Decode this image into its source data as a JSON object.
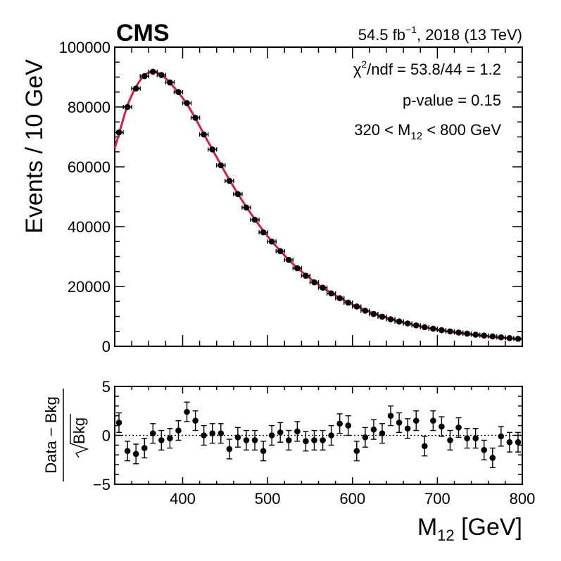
{
  "header": {
    "experiment": "CMS",
    "lumi_text": "54.5 fb",
    "lumi_exp": "−1",
    "lumi_rest": ", 2018 (13 TeV)"
  },
  "info": {
    "chi2_prefix": "χ",
    "chi2_exp": "2",
    "chi2_rest": "/ndf = 53.8/44 = 1.2",
    "pvalue": "p-value = 0.15",
    "range_prefix": "320 < M",
    "range_sub": "12",
    "range_rest": " < 800 GeV"
  },
  "chart_data": [
    {
      "type": "scatter",
      "title": "Events / 10 GeV",
      "ylabel": "Events / 10 GeV",
      "xlim": [
        320,
        800
      ],
      "ylim": [
        0,
        100000
      ],
      "yticks": [
        0,
        20000,
        40000,
        60000,
        80000,
        100000
      ],
      "ytick_labels": [
        "0",
        "20000",
        "40000",
        "60000",
        "80000",
        "100000"
      ],
      "series": [
        {
          "name": "Data",
          "x": [
            325,
            335,
            345,
            355,
            365,
            375,
            385,
            395,
            405,
            415,
            425,
            435,
            445,
            455,
            465,
            475,
            485,
            495,
            505,
            515,
            525,
            535,
            545,
            555,
            565,
            575,
            585,
            595,
            605,
            615,
            625,
            635,
            645,
            655,
            665,
            675,
            685,
            695,
            705,
            715,
            725,
            735,
            745,
            755,
            765,
            775,
            785,
            795
          ],
          "y": [
            71500,
            80000,
            86200,
            90300,
            91800,
            90700,
            88200,
            85000,
            81300,
            76400,
            70800,
            65800,
            60500,
            55300,
            50900,
            46400,
            42300,
            38100,
            35000,
            31800,
            28900,
            26100,
            23600,
            21400,
            19600,
            17700,
            16100,
            14600,
            13300,
            11900,
            10800,
            9900,
            9050,
            8300,
            7650,
            7000,
            6400,
            5900,
            5400,
            5000,
            4600,
            4250,
            3900,
            3600,
            3300,
            3000,
            2750,
            2500
          ]
        },
        {
          "name": "Fit",
          "x": [
            325,
            335,
            345,
            355,
            365,
            375,
            385,
            395,
            405,
            415,
            425,
            435,
            445,
            455,
            465,
            475,
            485,
            495,
            505,
            515,
            525,
            535,
            545,
            555,
            565,
            575,
            585,
            595,
            605,
            615,
            625,
            635,
            645,
            655,
            665,
            675,
            685,
            695,
            705,
            715,
            725,
            735,
            745,
            755,
            765,
            775,
            785,
            795
          ],
          "y": [
            71000,
            80500,
            86700,
            90600,
            91700,
            90800,
            88100,
            84800,
            81000,
            76200,
            70900,
            65800,
            60700,
            55700,
            51000,
            46600,
            42500,
            38600,
            35100,
            31900,
            28900,
            26200,
            23800,
            21600,
            19600,
            17800,
            16200,
            14700,
            13300,
            12100,
            11000,
            10000,
            9100,
            8300,
            7600,
            6950,
            6350,
            5800,
            5300,
            4850,
            4450,
            4080,
            3740,
            3430,
            3150,
            2900,
            2660,
            2450
          ],
          "color": "#d4203f"
        }
      ]
    },
    {
      "type": "scatter",
      "xlabel": "M",
      "xlabel_sub": "12",
      "xlabel_rest": " [GeV]",
      "ylabel_top": "Data − Bkg",
      "ylabel_bottom": "Bkg",
      "xlim": [
        320,
        800
      ],
      "ylim": [
        -5,
        5
      ],
      "xticks": [
        400,
        500,
        600,
        700,
        800
      ],
      "xtick_labels": [
        "400",
        "500",
        "600",
        "700",
        "800"
      ],
      "yticks": [
        -5,
        0,
        5
      ],
      "ytick_labels": [
        "−5",
        "0",
        "5"
      ],
      "reference_line": 0,
      "series": [
        {
          "name": "Pull",
          "x": [
            325,
            335,
            345,
            355,
            365,
            375,
            385,
            395,
            405,
            415,
            425,
            435,
            445,
            455,
            465,
            475,
            485,
            495,
            505,
            515,
            525,
            535,
            545,
            555,
            565,
            575,
            585,
            595,
            605,
            615,
            625,
            635,
            645,
            655,
            665,
            675,
            685,
            695,
            705,
            715,
            725,
            735,
            745,
            755,
            765,
            775,
            785,
            795
          ],
          "y": [
            1.3,
            -1.6,
            -1.9,
            -1.3,
            0.2,
            -0.5,
            -0.3,
            0.5,
            2.4,
            1.5,
            0.0,
            0.2,
            0.2,
            -1.4,
            -0.2,
            -0.5,
            -0.5,
            -1.6,
            0.0,
            0.3,
            -0.5,
            0.4,
            -0.6,
            -0.5,
            -0.5,
            0.0,
            1.2,
            1.0,
            -1.6,
            -0.2,
            0.6,
            0.2,
            2.0,
            1.3,
            0.7,
            1.5,
            -1.1,
            1.5,
            0.9,
            -0.5,
            0.8,
            -0.3,
            -0.3,
            -1.5,
            -2.3,
            -0.1,
            -0.7,
            -0.7
          ],
          "err": 1.0
        }
      ]
    }
  ]
}
